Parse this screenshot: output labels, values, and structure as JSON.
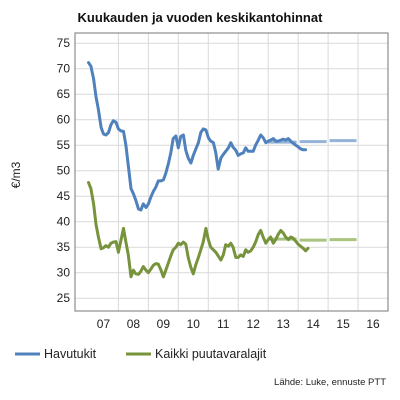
{
  "chart_data": {
    "type": "line",
    "title": "Kuukauden ja vuoden keskikantohinnat",
    "ylabel": "€/m3",
    "ylim": [
      22.5,
      77
    ],
    "yticks": [
      25,
      30,
      35,
      40,
      45,
      50,
      55,
      60,
      65,
      70,
      75
    ],
    "xlim": [
      2006.55,
      2017.0
    ],
    "categories": [
      "07",
      "08",
      "09",
      "10",
      "11",
      "12",
      "13",
      "14",
      "15",
      "16"
    ],
    "grid": true,
    "legend_position": "bottom",
    "source": "Lähde: Luke, ennuste PTT",
    "colors": {
      "havutukit": "#4f81bd",
      "havutukit_forecast": "#95b3d7",
      "kaikki": "#77933c",
      "kaikki_forecast": "#a9c47f",
      "grid": "#d9d9d9"
    },
    "series": [
      {
        "name": "Havutukit",
        "color": "#4f81bd",
        "points": [
          [
            2007.0,
            71.2
          ],
          [
            2007.08,
            70.5
          ],
          [
            2007.17,
            68.0
          ],
          [
            2007.25,
            64.5
          ],
          [
            2007.33,
            62.0
          ],
          [
            2007.42,
            58.5
          ],
          [
            2007.5,
            57.2
          ],
          [
            2007.58,
            57.0
          ],
          [
            2007.67,
            57.5
          ],
          [
            2007.75,
            59.0
          ],
          [
            2007.83,
            59.8
          ],
          [
            2007.92,
            59.5
          ],
          [
            2008.0,
            58.2
          ],
          [
            2008.08,
            57.8
          ],
          [
            2008.17,
            57.7
          ],
          [
            2008.25,
            55.0
          ],
          [
            2008.33,
            51.0
          ],
          [
            2008.42,
            46.5
          ],
          [
            2008.5,
            45.5
          ],
          [
            2008.58,
            44.2
          ],
          [
            2008.67,
            42.5
          ],
          [
            2008.75,
            42.3
          ],
          [
            2008.83,
            43.5
          ],
          [
            2008.92,
            42.8
          ],
          [
            2009.0,
            43.5
          ],
          [
            2009.08,
            44.8
          ],
          [
            2009.17,
            46.0
          ],
          [
            2009.25,
            46.8
          ],
          [
            2009.33,
            48.0
          ],
          [
            2009.42,
            48.0
          ],
          [
            2009.5,
            48.2
          ],
          [
            2009.58,
            49.5
          ],
          [
            2009.67,
            51.5
          ],
          [
            2009.75,
            53.5
          ],
          [
            2009.83,
            56.3
          ],
          [
            2009.92,
            56.8
          ],
          [
            2010.0,
            54.5
          ],
          [
            2010.08,
            56.7
          ],
          [
            2010.17,
            57.0
          ],
          [
            2010.25,
            54.0
          ],
          [
            2010.33,
            52.5
          ],
          [
            2010.42,
            51.5
          ],
          [
            2010.5,
            53.0
          ],
          [
            2010.58,
            54.2
          ],
          [
            2010.67,
            55.5
          ],
          [
            2010.75,
            57.5
          ],
          [
            2010.83,
            58.2
          ],
          [
            2010.92,
            58.0
          ],
          [
            2011.0,
            56.5
          ],
          [
            2011.08,
            55.8
          ],
          [
            2011.17,
            55.5
          ],
          [
            2011.25,
            53.5
          ],
          [
            2011.33,
            50.3
          ],
          [
            2011.42,
            52.5
          ],
          [
            2011.5,
            53.2
          ],
          [
            2011.58,
            53.8
          ],
          [
            2011.67,
            54.5
          ],
          [
            2011.75,
            55.5
          ],
          [
            2011.83,
            54.6
          ],
          [
            2011.92,
            54.0
          ],
          [
            2012.0,
            53.0
          ],
          [
            2012.08,
            53.3
          ],
          [
            2012.17,
            53.5
          ],
          [
            2012.25,
            54.5
          ],
          [
            2012.33,
            53.8
          ],
          [
            2012.42,
            53.8
          ],
          [
            2012.5,
            53.8
          ],
          [
            2012.58,
            55.0
          ],
          [
            2012.67,
            56.0
          ],
          [
            2012.75,
            57.0
          ],
          [
            2012.83,
            56.5
          ],
          [
            2012.92,
            55.5
          ],
          [
            2013.0,
            55.8
          ],
          [
            2013.08,
            56.0
          ],
          [
            2013.17,
            56.3
          ],
          [
            2013.25,
            55.8
          ],
          [
            2013.33,
            55.8
          ],
          [
            2013.42,
            56.0
          ],
          [
            2013.5,
            56.2
          ],
          [
            2013.58,
            56.0
          ],
          [
            2013.67,
            56.3
          ],
          [
            2013.75,
            55.8
          ],
          [
            2013.83,
            55.4
          ],
          [
            2013.92,
            55.0
          ],
          [
            2014.0,
            54.7
          ],
          [
            2014.08,
            54.3
          ],
          [
            2014.17,
            54.1
          ],
          [
            2014.25,
            54.1
          ]
        ]
      },
      {
        "name": "Kaikki puutavaralajit",
        "color": "#77933c",
        "points": [
          [
            2007.0,
            47.7
          ],
          [
            2007.08,
            46.5
          ],
          [
            2007.17,
            43.5
          ],
          [
            2007.25,
            39.5
          ],
          [
            2007.33,
            37.0
          ],
          [
            2007.42,
            34.7
          ],
          [
            2007.5,
            34.9
          ],
          [
            2007.58,
            35.3
          ],
          [
            2007.67,
            35.0
          ],
          [
            2007.75,
            35.8
          ],
          [
            2007.83,
            36.0
          ],
          [
            2007.92,
            36.1
          ],
          [
            2008.0,
            34.0
          ],
          [
            2008.08,
            36.2
          ],
          [
            2008.17,
            38.7
          ],
          [
            2008.25,
            36.0
          ],
          [
            2008.33,
            33.5
          ],
          [
            2008.42,
            29.2
          ],
          [
            2008.5,
            30.5
          ],
          [
            2008.58,
            29.8
          ],
          [
            2008.67,
            29.7
          ],
          [
            2008.75,
            30.3
          ],
          [
            2008.83,
            31.2
          ],
          [
            2008.92,
            30.5
          ],
          [
            2009.0,
            30.0
          ],
          [
            2009.08,
            30.7
          ],
          [
            2009.17,
            31.5
          ],
          [
            2009.25,
            31.8
          ],
          [
            2009.33,
            31.7
          ],
          [
            2009.42,
            30.5
          ],
          [
            2009.5,
            29.2
          ],
          [
            2009.58,
            30.5
          ],
          [
            2009.67,
            32.0
          ],
          [
            2009.75,
            33.3
          ],
          [
            2009.83,
            34.5
          ],
          [
            2009.92,
            35.0
          ],
          [
            2010.0,
            35.8
          ],
          [
            2010.08,
            35.5
          ],
          [
            2010.17,
            36.0
          ],
          [
            2010.25,
            35.6
          ],
          [
            2010.33,
            33.0
          ],
          [
            2010.42,
            31.0
          ],
          [
            2010.5,
            29.8
          ],
          [
            2010.58,
            31.5
          ],
          [
            2010.67,
            33.0
          ],
          [
            2010.75,
            34.5
          ],
          [
            2010.83,
            36.0
          ],
          [
            2010.92,
            38.7
          ],
          [
            2011.0,
            36.5
          ],
          [
            2011.08,
            35.0
          ],
          [
            2011.17,
            34.5
          ],
          [
            2011.25,
            34.0
          ],
          [
            2011.33,
            33.3
          ],
          [
            2011.42,
            32.5
          ],
          [
            2011.5,
            33.5
          ],
          [
            2011.58,
            35.5
          ],
          [
            2011.67,
            35.2
          ],
          [
            2011.75,
            35.8
          ],
          [
            2011.83,
            35.0
          ],
          [
            2011.92,
            33.0
          ],
          [
            2012.0,
            33.0
          ],
          [
            2012.08,
            33.5
          ],
          [
            2012.17,
            33.2
          ],
          [
            2012.25,
            34.5
          ],
          [
            2012.33,
            34.0
          ],
          [
            2012.42,
            34.3
          ],
          [
            2012.5,
            35.0
          ],
          [
            2012.58,
            36.0
          ],
          [
            2012.67,
            37.5
          ],
          [
            2012.75,
            38.3
          ],
          [
            2012.83,
            37.0
          ],
          [
            2012.92,
            35.8
          ],
          [
            2013.0,
            36.5
          ],
          [
            2013.08,
            37.0
          ],
          [
            2013.17,
            35.8
          ],
          [
            2013.25,
            36.5
          ],
          [
            2013.33,
            37.5
          ],
          [
            2013.42,
            38.3
          ],
          [
            2013.5,
            37.8
          ],
          [
            2013.58,
            37.0
          ],
          [
            2013.67,
            36.5
          ],
          [
            2013.75,
            37.0
          ],
          [
            2013.83,
            36.8
          ],
          [
            2013.92,
            36.2
          ],
          [
            2014.0,
            35.6
          ],
          [
            2014.08,
            35.2
          ],
          [
            2014.17,
            34.8
          ],
          [
            2014.25,
            34.3
          ],
          [
            2014.33,
            34.8
          ]
        ]
      }
    ],
    "forecasts": [
      {
        "series": "Havutukit",
        "color": "#95b3d7",
        "segments": [
          {
            "x": [
              2013.0,
              2013.95
            ],
            "y": 55.6
          },
          {
            "x": [
              2014.05,
              2014.95
            ],
            "y": 55.7
          },
          {
            "x": [
              2015.05,
              2015.95
            ],
            "y": 55.9
          }
        ]
      },
      {
        "series": "Kaikki puutavaralajit",
        "color": "#a9c47f",
        "segments": [
          {
            "x": [
              2013.0,
              2013.95
            ],
            "y": 36.6
          },
          {
            "x": [
              2014.05,
              2014.95
            ],
            "y": 36.4
          },
          {
            "x": [
              2015.05,
              2015.95
            ],
            "y": 36.5
          }
        ]
      }
    ]
  }
}
